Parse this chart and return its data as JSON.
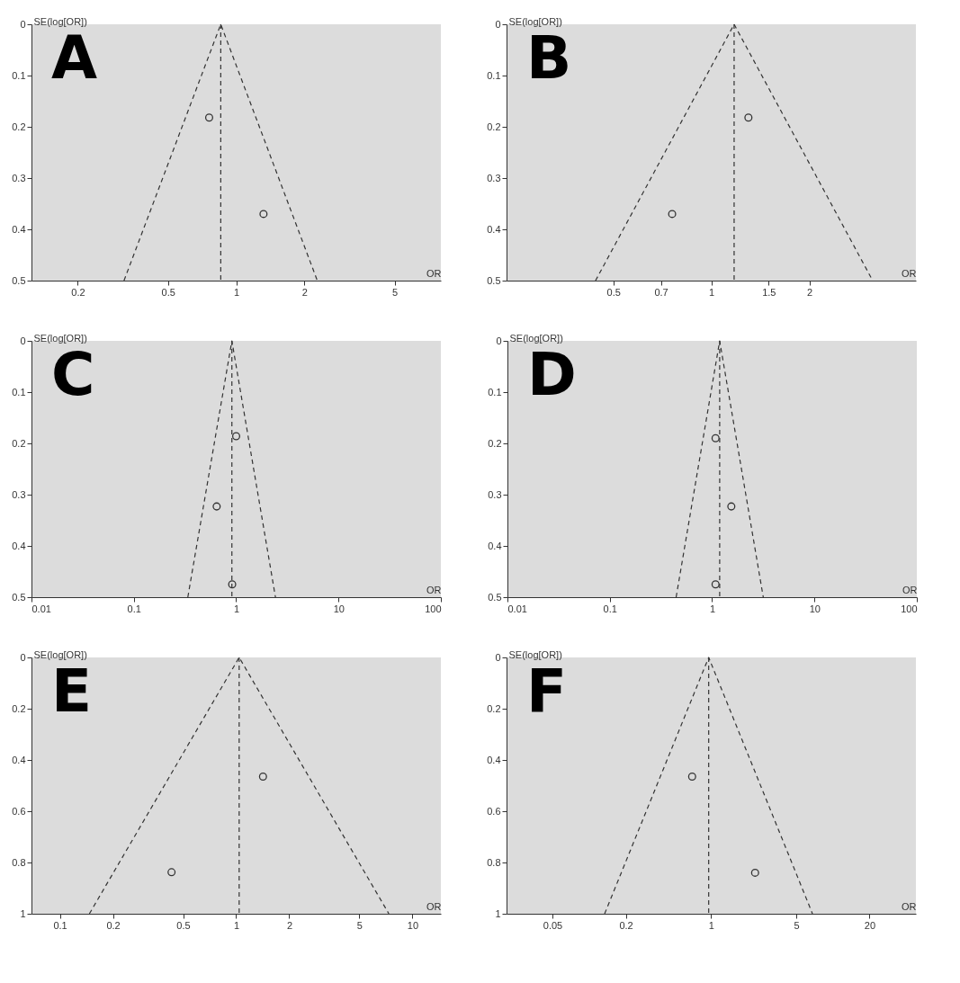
{
  "chart_data": [
    {
      "type": "scatter",
      "title": "A",
      "xlabel": "OR",
      "ylabel": "SE(log[OR])",
      "log": "x",
      "xlim": [
        0.125,
        8
      ],
      "xticks": [
        0.2,
        0.5,
        1,
        2,
        5
      ],
      "ylim": [
        0.5,
        0
      ],
      "yticks": [
        0,
        0.1,
        0.2,
        0.3,
        0.4,
        0.5
      ],
      "series": [
        {
          "marker": "circle",
          "color": "#333333",
          "x": [
            0.76,
            1.32
          ],
          "values": [
            0.182,
            0.37
          ]
        },
        {
          "type": "line",
          "marker": "none",
          "line_style": "dashed",
          "color": "#333333",
          "x": [
            0.32,
            0.855,
            2.28
          ],
          "values": [
            0.5,
            0,
            0.5
          ]
        }
      ],
      "ref_lines": [
        {
          "axis": "x",
          "value": 0.855,
          "color": "#333333",
          "line_style": "dashed"
        }
      ]
    },
    {
      "type": "scatter",
      "title": "B",
      "xlabel": "OR",
      "ylabel": "SE(log[OR])",
      "log": "x",
      "xlim": [
        0.235,
        4.25
      ],
      "xticks": [
        0.5,
        0.7,
        1,
        1.5,
        2
      ],
      "ylim": [
        0.5,
        0
      ],
      "yticks": [
        0,
        0.1,
        0.2,
        0.3,
        0.4,
        0.5
      ],
      "series": [
        {
          "marker": "circle",
          "color": "#333333",
          "x": [
            1.3,
            0.758
          ],
          "values": [
            0.182,
            0.37
          ]
        },
        {
          "type": "line",
          "marker": "none",
          "line_style": "dashed",
          "color": "#333333",
          "x": [
            0.441,
            1.175,
            3.13
          ],
          "values": [
            0.5,
            0,
            0.5
          ]
        }
      ],
      "ref_lines": [
        {
          "axis": "x",
          "value": 1.175,
          "color": "#333333",
          "line_style": "dashed"
        }
      ]
    },
    {
      "type": "scatter",
      "title": "C",
      "xlabel": "OR",
      "ylabel": "SE(log[OR])",
      "log": "x",
      "xlim": [
        0.01,
        100
      ],
      "xticks": [
        0.01,
        0.1,
        1,
        10,
        100
      ],
      "ylim": [
        0.5,
        0
      ],
      "yticks": [
        0,
        0.1,
        0.2,
        0.3,
        0.4,
        0.5
      ],
      "series": [
        {
          "marker": "circle",
          "color": "#333333",
          "x": [
            1.0,
            0.645,
            0.914
          ],
          "values": [
            0.186,
            0.323,
            0.475
          ]
        },
        {
          "type": "line",
          "marker": "none",
          "line_style": "dashed",
          "color": "#333333",
          "x": [
            0.337,
            0.908,
            2.42
          ],
          "values": [
            0.5,
            0,
            0.5
          ]
        }
      ],
      "ref_lines": [
        {
          "axis": "x",
          "value": 0.908,
          "color": "#333333",
          "line_style": "dashed"
        }
      ]
    },
    {
      "type": "scatter",
      "title": "D",
      "xlabel": "OR",
      "ylabel": "SE(log[OR])",
      "log": "x",
      "xlim": [
        0.01,
        100
      ],
      "xticks": [
        0.01,
        0.1,
        1,
        10,
        100
      ],
      "ylim": [
        0.5,
        0
      ],
      "yticks": [
        0,
        0.1,
        0.2,
        0.3,
        0.4,
        0.5
      ],
      "series": [
        {
          "marker": "circle",
          "color": "#333333",
          "x": [
            1.08,
            1.54,
            1.08
          ],
          "values": [
            0.19,
            0.323,
            0.475
          ]
        },
        {
          "type": "line",
          "marker": "none",
          "line_style": "dashed",
          "color": "#333333",
          "x": [
            0.445,
            1.185,
            3.16
          ],
          "values": [
            0.5,
            0,
            0.5
          ]
        }
      ],
      "ref_lines": [
        {
          "axis": "x",
          "value": 1.185,
          "color": "#333333",
          "line_style": "dashed"
        }
      ]
    },
    {
      "type": "scatter",
      "title": "E",
      "xlabel": "OR",
      "ylabel": "SE(log[OR])",
      "log": "x",
      "xlim": [
        0.069,
        14.5
      ],
      "xticks": [
        0.1,
        0.2,
        0.5,
        1,
        2,
        5,
        10
      ],
      "ylim": [
        1,
        0
      ],
      "yticks": [
        0,
        0.2,
        0.4,
        0.6,
        0.8,
        1
      ],
      "series": [
        {
          "marker": "circle",
          "color": "#333333",
          "x": [
            1.42,
            0.43
          ],
          "values": [
            0.465,
            0.838
          ]
        },
        {
          "type": "line",
          "marker": "none",
          "line_style": "dashed",
          "color": "#333333",
          "x": [
            0.147,
            1.04,
            7.35
          ],
          "values": [
            1,
            0,
            1
          ]
        }
      ],
      "ref_lines": [
        {
          "axis": "x",
          "value": 1.04,
          "color": "#333333",
          "line_style": "dashed"
        }
      ]
    },
    {
      "type": "scatter",
      "title": "F",
      "xlabel": "OR",
      "ylabel": "SE(log[OR])",
      "log": "x",
      "xlim": [
        0.021,
        48
      ],
      "xticks": [
        0.05,
        0.2,
        1,
        5,
        20
      ],
      "ylim": [
        1,
        0
      ],
      "yticks": [
        0,
        0.2,
        0.4,
        0.6,
        0.8,
        1
      ],
      "series": [
        {
          "marker": "circle",
          "color": "#333333",
          "x": [
            0.7,
            2.3
          ],
          "values": [
            0.465,
            0.84
          ]
        },
        {
          "type": "line",
          "marker": "none",
          "line_style": "dashed",
          "color": "#333333",
          "x": [
            0.134,
            0.957,
            6.8
          ],
          "values": [
            1,
            0,
            1
          ]
        }
      ],
      "ref_lines": [
        {
          "axis": "x",
          "value": 0.957,
          "color": "#333333",
          "line_style": "dashed"
        }
      ]
    }
  ]
}
